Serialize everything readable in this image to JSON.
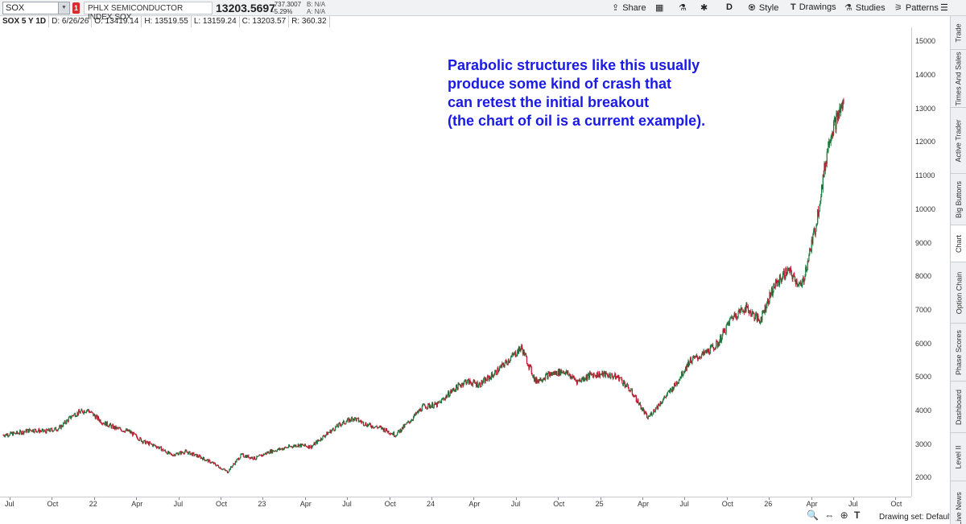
{
  "toolbar": {
    "symbol": "SOX",
    "alert_badge": "1",
    "index_name": "PHLX SEMICONDUCTOR INDEX SOX",
    "last_price": "13203.5697",
    "net_change": "-737.3007",
    "pct_change": "-5.29%",
    "bid": "B: N/A",
    "ask": "A: N/A",
    "share": "Share",
    "aggregation": "D",
    "style": "Style",
    "drawings": "Drawings",
    "studies": "Studies",
    "patterns": "Patterns"
  },
  "info": {
    "title": "SOX 5 Y 1D",
    "date": "D: 6/26/26",
    "open": "O: 13419.14",
    "high": "H: 13519.55",
    "low": "L: 13159.24",
    "close": "C: 13203.57",
    "range": "R: 360.32"
  },
  "annotation": {
    "line1": "Parabolic structures like this usually",
    "line2": "produce some kind of crash that",
    "line3": "can retest the initial breakout",
    "line4": "(the chart of oil is a current example)."
  },
  "side_tabs": [
    "Trade",
    "Times And Sales",
    "Active Trader",
    "Big Buttons",
    "Chart",
    "Option Chain",
    "Phase Scores",
    "Dashboard",
    "Level II",
    "Live News"
  ],
  "active_tab": "Chart",
  "bottom": {
    "drawing_set": "Drawing set: Default"
  },
  "colors": {
    "up": "#1a7a3c",
    "down": "#c8102e",
    "annotation": "#1a1ae6"
  },
  "chart_data": {
    "type": "candlestick",
    "symbol": "SOX",
    "yticks": [
      2000,
      3000,
      4000,
      5000,
      6000,
      7000,
      8000,
      9000,
      10000,
      11000,
      12000,
      13000,
      14000,
      15000
    ],
    "ylim": [
      1700,
      15200
    ],
    "xticks": [
      "Jul",
      "Oct",
      "22",
      "Apr",
      "Jul",
      "Oct",
      "23",
      "Apr",
      "Jul",
      "Oct",
      "24",
      "Apr",
      "Jul",
      "Oct",
      "25",
      "Apr",
      "Jul",
      "Oct",
      "26",
      "Apr",
      "Jul",
      "Oct"
    ],
    "x": [
      "2021-06",
      "2021-07",
      "2021-08",
      "2021-09",
      "2021-10",
      "2021-11",
      "2021-12",
      "2022-01",
      "2022-02",
      "2022-03",
      "2022-04",
      "2022-05",
      "2022-06",
      "2022-07",
      "2022-08",
      "2022-09",
      "2022-10",
      "2022-11",
      "2022-12",
      "2023-01",
      "2023-02",
      "2023-03",
      "2023-04",
      "2023-05",
      "2023-06",
      "2023-07",
      "2023-08",
      "2023-09",
      "2023-10",
      "2023-11",
      "2023-12",
      "2024-01",
      "2024-02",
      "2024-03",
      "2024-04",
      "2024-05",
      "2024-06",
      "2024-07",
      "2024-08",
      "2024-09",
      "2024-10",
      "2024-11",
      "2024-12",
      "2025-01",
      "2025-02",
      "2025-03",
      "2025-04",
      "2025-05",
      "2025-06",
      "2025-07",
      "2025-08",
      "2025-09",
      "2025-10",
      "2025-11",
      "2025-12",
      "2026-01",
      "2026-02",
      "2026-03",
      "2026-04",
      "2026-05",
      "2026-06"
    ],
    "close": [
      3300,
      3350,
      3450,
      3400,
      3500,
      3900,
      4050,
      3700,
      3500,
      3400,
      3100,
      2950,
      2700,
      2800,
      2650,
      2450,
      2200,
      2700,
      2600,
      2800,
      2900,
      3000,
      2950,
      3300,
      3600,
      3800,
      3600,
      3500,
      3300,
      3700,
      4150,
      4200,
      4600,
      4900,
      4800,
      5100,
      5500,
      5900,
      4900,
      5100,
      5200,
      4900,
      5100,
      5100,
      5000,
      4500,
      3800,
      4300,
      4800,
      5500,
      5700,
      6000,
      6800,
      7100,
      6700,
      7700,
      8200,
      7700,
      9500,
      12200,
      13200
    ]
  }
}
